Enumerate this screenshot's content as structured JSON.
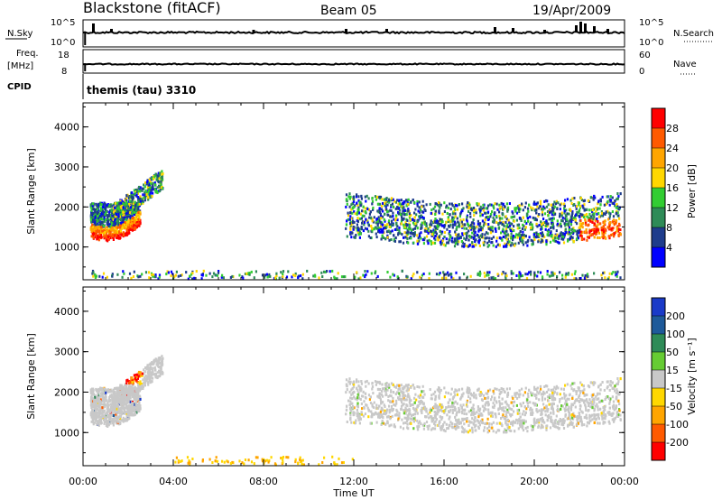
{
  "header": {
    "radar": "Blackstone (fitACF)",
    "beam": "Beam 05",
    "date": "19/Apr/2009"
  },
  "status_panels": {
    "nsky_label": "N.Sky",
    "nsky_ticks": [
      "10^5",
      "10^0"
    ],
    "nsearch_label": "N.Search",
    "nsearch_ticks": [
      "10^5",
      "10^0"
    ],
    "freq_label_1": "Freq.",
    "freq_label_2": "[MHz]",
    "freq_ticks": [
      "18",
      "8"
    ],
    "nave_label": "Nave",
    "nave_ticks": [
      "60",
      "0"
    ],
    "cpid_label": "CPID",
    "cpid_value": "themis (tau) 3310"
  },
  "colorbars": {
    "power": {
      "label": "Power [dB]",
      "ticks": [
        "28",
        "24",
        "20",
        "16",
        "12",
        "8",
        "4"
      ],
      "colors": [
        "#ff0000",
        "#ff5a00",
        "#ffa500",
        "#ffd700",
        "#32cd32",
        "#2e8b57",
        "#1e3c8c",
        "#0000ff"
      ]
    },
    "velocity": {
      "label": "Velocity [m s⁻¹]",
      "ticks": [
        "200",
        "100",
        "50",
        "15",
        "-15",
        "-50",
        "-100",
        "-200"
      ],
      "colors": [
        "#1a3ac8",
        "#1e5a9a",
        "#2e8b57",
        "#66cc33",
        "#c8c8c8",
        "#ffd700",
        "#ffa500",
        "#ff5a00",
        "#ff0000"
      ]
    }
  },
  "chart_data": [
    {
      "type": "heatmap",
      "title": "Power",
      "xlabel": "Time UT",
      "ylabel": "Slant Range [km]",
      "x_range_hours": [
        0,
        24
      ],
      "y_range_km": [
        180,
        4600
      ],
      "xticks": [
        "00:00",
        "04:00",
        "08:00",
        "12:00",
        "16:00",
        "20:00",
        "00:00"
      ],
      "yticks": [
        "1000",
        "2000",
        "3000",
        "4000"
      ],
      "scatter_bands": [
        {
          "t0": 0.3,
          "t1": 2.3,
          "r0": 1000,
          "r1": 1900,
          "note": "strong red band near 1100 km"
        },
        {
          "t0": 1.3,
          "t1": 3.5,
          "r0": 1900,
          "r1": 2900
        },
        {
          "t0": 11.6,
          "t1": 23.8,
          "r0": 900,
          "r1": 2400
        },
        {
          "t0": 0.3,
          "t1": 23.8,
          "r0": 180,
          "r1": 450,
          "note": "near-range ground scatter"
        }
      ]
    },
    {
      "type": "heatmap",
      "title": "Velocity",
      "xlabel": "Time UT",
      "ylabel": "Slant Range [km]",
      "x_range_hours": [
        0,
        24
      ],
      "y_range_km": [
        180,
        4600
      ],
      "xticks": [
        "00:00",
        "04:00",
        "08:00",
        "12:00",
        "16:00",
        "20:00",
        "00:00"
      ],
      "yticks": [
        "1000",
        "2000",
        "3000",
        "4000"
      ],
      "scatter_bands": [
        {
          "t0": 0.3,
          "t1": 3.5,
          "r0": 1100,
          "r1": 2700,
          "note": "mostly grey, orange/red patch near 2500 km at 02:00"
        },
        {
          "t0": 11.6,
          "t1": 23.8,
          "r0": 900,
          "r1": 2300,
          "note": "mostly grey ground scatter"
        }
      ]
    }
  ]
}
